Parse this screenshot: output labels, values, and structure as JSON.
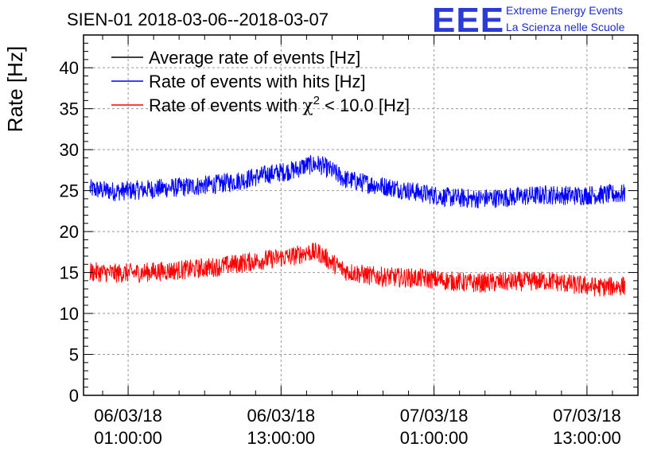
{
  "chart_data": {
    "type": "line",
    "title": "SIEN-01 2018-03-06--2018-03-07",
    "ylabel": "Rate [Hz]",
    "xlabel": "",
    "ylim": [
      0,
      44
    ],
    "x_axis": {
      "type": "time",
      "range": [
        "2018-03-05T21:30:00",
        "2018-03-07T17:00:00"
      ],
      "ticks": [
        {
          "date": "06/03/18",
          "time": "01:00:00",
          "at": "2018-03-06T01:00:00"
        },
        {
          "date": "06/03/18",
          "time": "13:00:00",
          "at": "2018-03-06T13:00:00"
        },
        {
          "date": "07/03/18",
          "time": "01:00:00",
          "at": "2018-03-07T01:00:00"
        },
        {
          "date": "07/03/18",
          "time": "13:00:00",
          "at": "2018-03-07T13:00:00"
        }
      ]
    },
    "y_ticks": [
      0,
      5,
      10,
      15,
      20,
      25,
      30,
      35,
      40
    ],
    "grid": true,
    "legend_position": "top-left",
    "legend": [
      {
        "label": "Average rate of events [Hz]",
        "color": "#000000"
      },
      {
        "label": "Rate of events with hits [Hz]",
        "color": "#0000ff"
      },
      {
        "label_pre": "Rate of events with ",
        "label_chi": "χ",
        "label_sup": "2",
        "label_post": " < 10.0 [Hz]",
        "color": "#ff0000"
      }
    ],
    "series": [
      {
        "name": "Rate of events with hits [Hz]",
        "color": "#0000ff",
        "x": [
          "2018-03-05T22:00:00",
          "2018-03-06T00:00:00",
          "2018-03-06T02:00:00",
          "2018-03-06T04:00:00",
          "2018-03-06T06:00:00",
          "2018-03-06T08:00:00",
          "2018-03-06T10:00:00",
          "2018-03-06T12:00:00",
          "2018-03-06T14:00:00",
          "2018-03-06T15:00:00",
          "2018-03-06T16:00:00",
          "2018-03-06T17:00:00",
          "2018-03-06T18:00:00",
          "2018-03-06T20:00:00",
          "2018-03-06T22:00:00",
          "2018-03-07T00:00:00",
          "2018-03-07T02:00:00",
          "2018-03-07T04:00:00",
          "2018-03-07T06:00:00",
          "2018-03-07T08:00:00",
          "2018-03-07T10:00:00",
          "2018-03-07T12:00:00",
          "2018-03-07T14:00:00",
          "2018-03-07T16:00:00"
        ],
        "values": [
          25.2,
          24.9,
          25.1,
          25.3,
          25.5,
          25.8,
          26.3,
          27.0,
          27.5,
          28.1,
          28.2,
          27.4,
          26.4,
          25.8,
          25.3,
          24.7,
          24.2,
          24.0,
          24.1,
          24.3,
          24.5,
          24.4,
          24.5,
          24.6
        ]
      },
      {
        "name": "Rate of events with χ2 < 10.0 [Hz]",
        "color": "#ff0000",
        "x": [
          "2018-03-05T22:00:00",
          "2018-03-06T00:00:00",
          "2018-03-06T02:00:00",
          "2018-03-06T04:00:00",
          "2018-03-06T06:00:00",
          "2018-03-06T08:00:00",
          "2018-03-06T10:00:00",
          "2018-03-06T12:00:00",
          "2018-03-06T14:00:00",
          "2018-03-06T15:00:00",
          "2018-03-06T16:00:00",
          "2018-03-06T17:00:00",
          "2018-03-06T18:00:00",
          "2018-03-06T20:00:00",
          "2018-03-06T22:00:00",
          "2018-03-07T00:00:00",
          "2018-03-07T02:00:00",
          "2018-03-07T04:00:00",
          "2018-03-07T06:00:00",
          "2018-03-07T08:00:00",
          "2018-03-07T10:00:00",
          "2018-03-07T12:00:00",
          "2018-03-07T14:00:00",
          "2018-03-07T16:00:00"
        ],
        "values": [
          15.1,
          14.9,
          15.0,
          15.2,
          15.4,
          15.7,
          16.2,
          16.6,
          17.0,
          17.5,
          17.4,
          16.2,
          15.2,
          14.6,
          14.4,
          14.3,
          14.0,
          13.7,
          13.8,
          13.9,
          14.0,
          13.5,
          13.2,
          13.4
        ]
      }
    ]
  },
  "logo": {
    "text": "EEE",
    "line1": "Extreme Energy Events",
    "line2": "La Scienza nelle Scuole",
    "color": "#2b3bd6"
  }
}
